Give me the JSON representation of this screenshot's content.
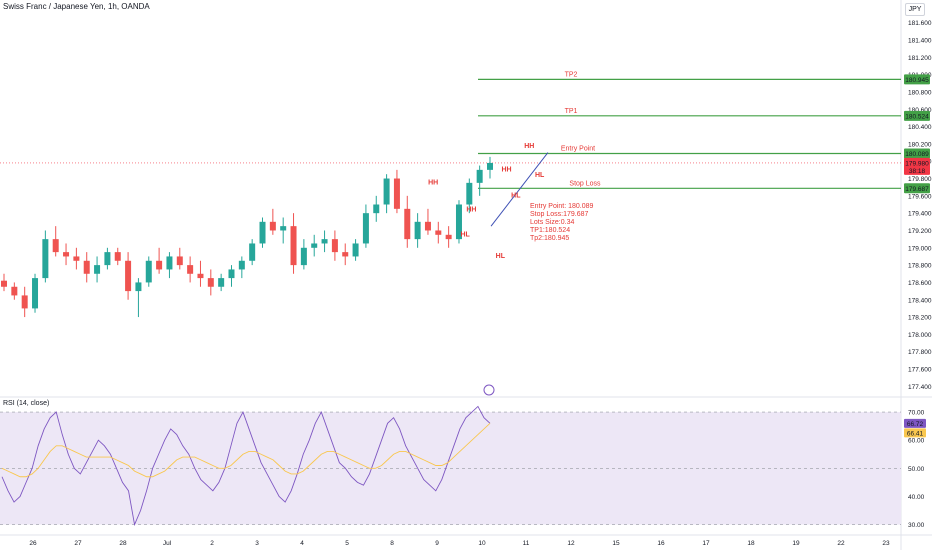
{
  "symbol_title": "Swiss Franc / Japanese Yen, 1h, OANDA",
  "currency": "JPY",
  "rsi_title": "RSI (14, close)",
  "colors": {
    "up": "#26a69a",
    "down": "#ef5350",
    "line_green": "#43a047",
    "annotation": "#e53935",
    "rsi_line": "#7e57c2",
    "rsi_ma": "#f9c74f",
    "rsi_band": "#ede7f6",
    "price_tag": "#f23645"
  },
  "chart_data": {
    "type": "candlestick",
    "price_axis": {
      "range": [
        177.3,
        181.7
      ],
      "ticks": [
        "181.600",
        "181.400",
        "181.200",
        "181.000",
        "180.800",
        "180.600",
        "180.400",
        "180.200",
        "180.000",
        "179.800",
        "179.600",
        "179.400",
        "179.200",
        "179.000",
        "178.800",
        "178.600",
        "178.400",
        "178.200",
        "178.000",
        "177.800",
        "177.600",
        "177.400"
      ]
    },
    "x_axis": {
      "labels": [
        "26",
        "27",
        "28",
        "Jul",
        "2",
        "3",
        "4",
        "5",
        "8",
        "9",
        "10",
        "11",
        "12",
        "15",
        "16",
        "17",
        "18",
        "19",
        "22",
        "23"
      ]
    },
    "candles_ohlc_summary": [
      [
        178.62,
        178.7,
        178.5,
        178.55
      ],
      [
        178.55,
        178.6,
        178.4,
        178.45
      ],
      [
        178.45,
        178.55,
        178.2,
        178.3
      ],
      [
        178.3,
        178.7,
        178.25,
        178.65
      ],
      [
        178.65,
        179.2,
        178.6,
        179.1
      ],
      [
        179.1,
        179.25,
        178.9,
        178.95
      ],
      [
        178.95,
        179.05,
        178.8,
        178.9
      ],
      [
        178.9,
        179.0,
        178.75,
        178.85
      ],
      [
        178.85,
        178.95,
        178.6,
        178.7
      ],
      [
        178.7,
        178.9,
        178.6,
        178.8
      ],
      [
        178.8,
        179.0,
        178.75,
        178.95
      ],
      [
        178.95,
        179.0,
        178.8,
        178.85
      ],
      [
        178.85,
        178.95,
        178.4,
        178.5
      ],
      [
        178.5,
        178.65,
        178.2,
        178.6
      ],
      [
        178.6,
        178.9,
        178.55,
        178.85
      ],
      [
        178.85,
        179.0,
        178.7,
        178.75
      ],
      [
        178.75,
        178.95,
        178.65,
        178.9
      ],
      [
        178.9,
        179.0,
        178.75,
        178.8
      ],
      [
        178.8,
        178.9,
        178.6,
        178.7
      ],
      [
        178.7,
        178.85,
        178.55,
        178.65
      ],
      [
        178.65,
        178.75,
        178.45,
        178.55
      ],
      [
        178.55,
        178.7,
        178.5,
        178.65
      ],
      [
        178.65,
        178.8,
        178.55,
        178.75
      ],
      [
        178.75,
        178.9,
        178.65,
        178.85
      ],
      [
        178.85,
        179.1,
        178.8,
        179.05
      ],
      [
        179.05,
        179.35,
        179.0,
        179.3
      ],
      [
        179.3,
        179.45,
        179.15,
        179.2
      ],
      [
        179.2,
        179.35,
        179.05,
        179.25
      ],
      [
        179.25,
        179.4,
        178.7,
        178.8
      ],
      [
        178.8,
        179.1,
        178.75,
        179.0
      ],
      [
        179.0,
        179.15,
        178.9,
        179.05
      ],
      [
        179.05,
        179.2,
        178.95,
        179.1
      ],
      [
        179.1,
        179.2,
        178.85,
        178.95
      ],
      [
        178.95,
        179.05,
        178.8,
        178.9
      ],
      [
        178.9,
        179.1,
        178.85,
        179.05
      ],
      [
        179.05,
        179.5,
        179.0,
        179.4
      ],
      [
        179.4,
        179.6,
        179.3,
        179.5
      ],
      [
        179.5,
        179.85,
        179.4,
        179.8
      ],
      [
        179.8,
        179.9,
        179.4,
        179.45
      ],
      [
        179.45,
        179.6,
        179.0,
        179.1
      ],
      [
        179.1,
        179.4,
        179.0,
        179.3
      ],
      [
        179.3,
        179.45,
        179.15,
        179.2
      ],
      [
        179.2,
        179.3,
        179.05,
        179.15
      ],
      [
        179.15,
        179.25,
        179.0,
        179.1
      ],
      [
        179.1,
        179.55,
        179.05,
        179.5
      ],
      [
        179.5,
        179.8,
        179.4,
        179.75
      ],
      [
        179.75,
        179.95,
        179.6,
        179.9
      ],
      [
        179.9,
        180.05,
        179.8,
        179.98
      ]
    ],
    "horizontal_levels": [
      {
        "label": "TP2",
        "value": 180.945,
        "tag": "180.945"
      },
      {
        "label": "TP1",
        "value": 180.524,
        "tag": "180.524"
      },
      {
        "label": "Entry Point",
        "value": 180.089,
        "tag": "180.089"
      },
      {
        "label": "Stop Loss",
        "value": 179.687,
        "tag": "179.687"
      }
    ],
    "current_price": {
      "value": 179.98,
      "tag": "179.980",
      "countdown": "38:18"
    },
    "swing_labels": [
      {
        "text": "HH",
        "x_index": 41.5,
        "price": 179.73
      },
      {
        "text": "HL",
        "x_index": 44.6,
        "price": 179.13
      },
      {
        "text": "HH",
        "x_index": 45.2,
        "price": 179.42
      },
      {
        "text": "HL",
        "x_index": 48.0,
        "price": 178.88
      },
      {
        "text": "HH",
        "x_index": 48.6,
        "price": 179.88
      },
      {
        "text": "HL",
        "x_index": 49.5,
        "price": 179.58
      },
      {
        "text": "HH",
        "x_index": 50.8,
        "price": 180.15
      },
      {
        "text": "HL",
        "x_index": 51.8,
        "price": 179.82
      }
    ],
    "trend_line": {
      "from": {
        "x_index": 47.1,
        "price": 179.25
      },
      "to": {
        "x_index": 52.6,
        "price": 180.1
      }
    },
    "info_text": [
      "Entry Point: 180.089",
      "Stop Loss:179.687",
      "Lots Size:0.34",
      "TP1:180.524",
      "Tp2:180.945"
    ],
    "rsi": {
      "range": [
        27,
        75
      ],
      "ticks": [
        "70.00",
        "60.00",
        "50.00",
        "40.00",
        "30.00"
      ],
      "bands": [
        30,
        50,
        70
      ],
      "value_tag": "66.72",
      "ma_tag": "66.41",
      "values": [
        47,
        42,
        38,
        40,
        45,
        50,
        58,
        64,
        68,
        70,
        62,
        55,
        50,
        48,
        52,
        56,
        60,
        58,
        55,
        50,
        45,
        42,
        30,
        35,
        42,
        50,
        55,
        60,
        64,
        62,
        58,
        55,
        50,
        46,
        44,
        42,
        45,
        50,
        58,
        66,
        70,
        64,
        58,
        52,
        48,
        44,
        40,
        38,
        42,
        48,
        55,
        60,
        66,
        70,
        64,
        58,
        52,
        50,
        47,
        45,
        44,
        48,
        54,
        60,
        66,
        68,
        64,
        58,
        54,
        50,
        46,
        44,
        42,
        46,
        52,
        58,
        64,
        68,
        70,
        72,
        68,
        66
      ],
      "ma_values": [
        50,
        49,
        48,
        47,
        47,
        48,
        50,
        53,
        56,
        58,
        58,
        57,
        56,
        55,
        54,
        54,
        54,
        54,
        54,
        53,
        52,
        51,
        49,
        48,
        47,
        47,
        48,
        49,
        51,
        53,
        54,
        54,
        54,
        53,
        52,
        51,
        50,
        50,
        51,
        53,
        55,
        56,
        56,
        55,
        54,
        53,
        51,
        49,
        48,
        48,
        49,
        51,
        53,
        55,
        56,
        56,
        55,
        54,
        53,
        52,
        51,
        50,
        50,
        51,
        53,
        55,
        56,
        56,
        55,
        54,
        53,
        52,
        51,
        51,
        52,
        54,
        56,
        58,
        60,
        62,
        64,
        66
      ]
    }
  }
}
